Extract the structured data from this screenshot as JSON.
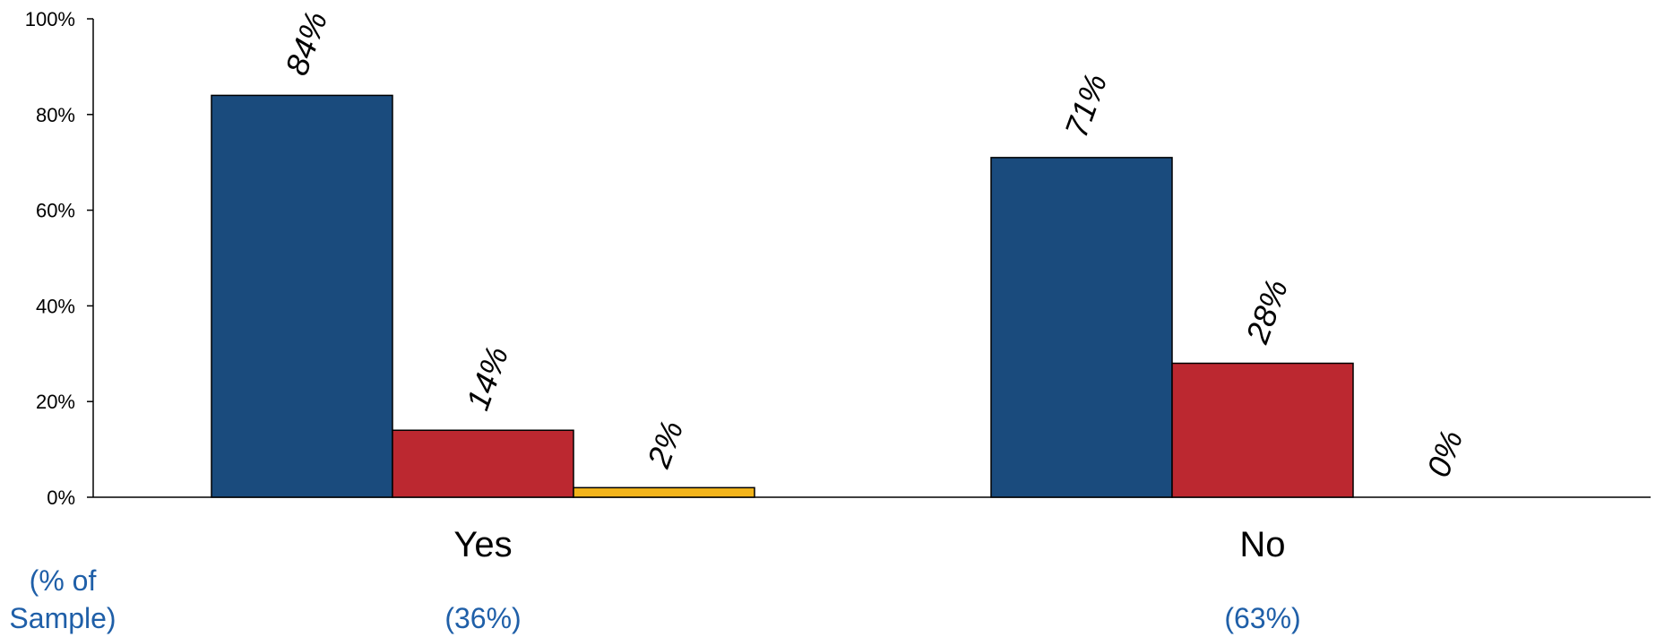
{
  "chart_data": {
    "type": "bar",
    "categories": [
      "Yes",
      "No"
    ],
    "series": [
      {
        "values": [
          84,
          71
        ],
        "color": "#1a4b7d"
      },
      {
        "values": [
          14,
          28
        ],
        "color": "#bc2830"
      },
      {
        "values": [
          2,
          0
        ],
        "color": "#f2b41b"
      }
    ],
    "data_labels": [
      [
        "84%",
        "71%"
      ],
      [
        "14%",
        "28%"
      ],
      [
        "2%",
        "0%"
      ]
    ],
    "y_ticks": [
      "0%",
      "20%",
      "40%",
      "60%",
      "80%",
      "100%"
    ],
    "ylim": [
      0,
      100
    ],
    "grid": false,
    "legend": "none"
  },
  "sample": {
    "label": "(% of\nSample)",
    "values": [
      "(36%)",
      "(63%)"
    ]
  }
}
